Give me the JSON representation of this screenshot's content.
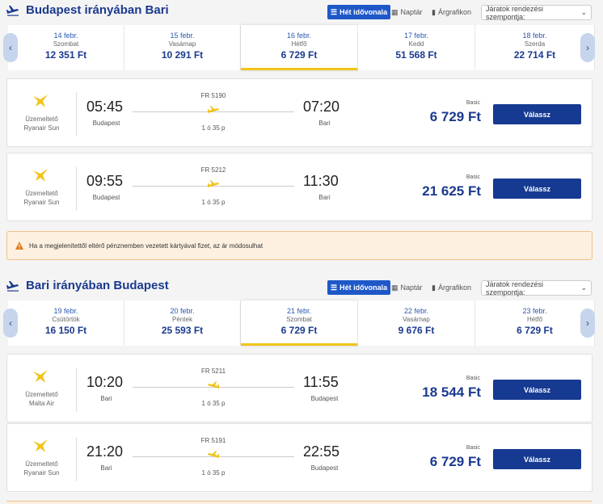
{
  "colors": {
    "brand": "#1b3a8f",
    "button": "#163a92",
    "accent": "#f0c419"
  },
  "sections": [
    {
      "title": "Budapest irányában Bari",
      "toolbar": {
        "week": "Hét idővonala",
        "calendar": "Naptár",
        "chart": "Árgrafikon",
        "sort": "Járatok rendezési szempontja:"
      },
      "dates": [
        {
          "date": "14 febr.",
          "weekday": "Szombat",
          "price": "12 351 Ft"
        },
        {
          "date": "15 febr.",
          "weekday": "Vasárnap",
          "price": "10 291 Ft"
        },
        {
          "date": "16 febr.",
          "weekday": "Hétfő",
          "price": "6 729 Ft"
        },
        {
          "date": "17 febr.",
          "weekday": "Kedd",
          "price": "51 568 Ft"
        },
        {
          "date": "18 febr.",
          "weekday": "Szerda",
          "price": "22 714 Ft"
        }
      ],
      "flights": [
        {
          "operated": "Üzemeltető",
          "airline": "Ryanair Sun",
          "dep_time": "05:45",
          "dep_city": "Budapest",
          "flight_no": "FR 5190",
          "duration": "1 ó 35 p",
          "arr_time": "07:20",
          "arr_city": "Bari",
          "fare": "Basic",
          "price": "6 729 Ft",
          "button": "Válassz"
        },
        {
          "operated": "Üzemeltető",
          "airline": "Ryanair Sun",
          "dep_time": "09:55",
          "dep_city": "Budapest",
          "flight_no": "FR 5212",
          "duration": "1 ó 35 p",
          "arr_time": "11:30",
          "arr_city": "Bari",
          "fare": "Basic",
          "price": "21 625 Ft",
          "button": "Válassz"
        }
      ]
    },
    {
      "title": "Bari irányában Budapest",
      "toolbar": {
        "week": "Hét idővonala",
        "calendar": "Naptár",
        "chart": "Árgrafikon",
        "sort": "Járatok rendezési szempontja:"
      },
      "dates": [
        {
          "date": "19 febr.",
          "weekday": "Csütörtök",
          "price": "16 150 Ft"
        },
        {
          "date": "20 febr.",
          "weekday": "Péntek",
          "price": "25 593 Ft"
        },
        {
          "date": "21 febr.",
          "weekday": "Szombat",
          "price": "6 729 Ft"
        },
        {
          "date": "22 febr.",
          "weekday": "Vasárnap",
          "price": "9 676 Ft"
        },
        {
          "date": "23 febr.",
          "weekday": "Hétfő",
          "price": "6 729 Ft"
        }
      ],
      "flights": [
        {
          "operated": "Üzemeltető",
          "airline": "Malta Air",
          "dep_time": "10:20",
          "dep_city": "Bari",
          "flight_no": "FR 5211",
          "duration": "1 ó 35 p",
          "arr_time": "11:55",
          "arr_city": "Budapest",
          "fare": "Basic",
          "price": "18 544 Ft",
          "button": "Válassz"
        },
        {
          "operated": "Üzemeltető",
          "airline": "Ryanair Sun",
          "dep_time": "21:20",
          "dep_city": "Bari",
          "flight_no": "FR 5191",
          "duration": "1 ó 35 p",
          "arr_time": "22:55",
          "arr_city": "Budapest",
          "fare": "Basic",
          "price": "6 729 Ft",
          "button": "Válassz"
        }
      ]
    }
  ],
  "warning": "Ha a megjelenítettől eltérő pénznemben vezetett kártyával fizet, az ár módosulhat"
}
